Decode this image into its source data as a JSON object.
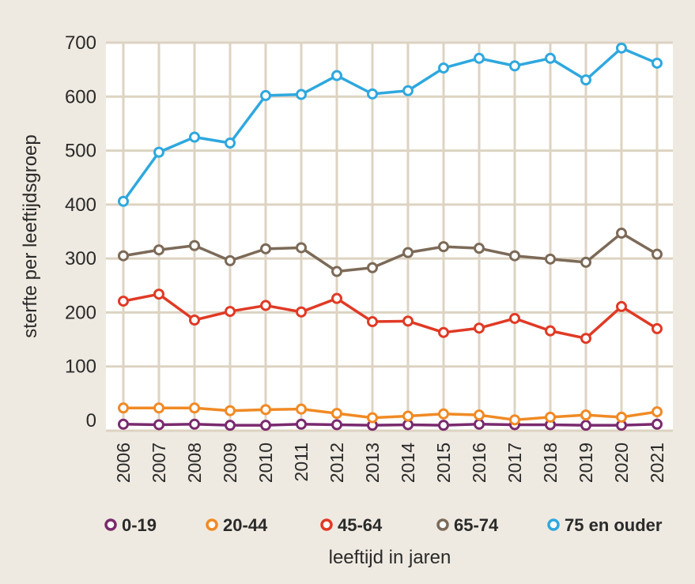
{
  "chart_data": {
    "type": "line",
    "title": "",
    "xlabel": "leeftijd in jaren",
    "ylabel": "sterfte per leeftijdsgroep",
    "ylim": [
      0,
      700
    ],
    "yticks": [
      0,
      100,
      200,
      300,
      400,
      500,
      600,
      700
    ],
    "grid": true,
    "legend_position": "bottom",
    "x": [
      "2006",
      "2007",
      "2008",
      "2009",
      "2010",
      "2011",
      "2012",
      "2013",
      "2014",
      "2015",
      "2016",
      "2017",
      "2018",
      "2019",
      "2020",
      "2021"
    ],
    "series": [
      {
        "name": "0-19",
        "color": "#7a2a6e",
        "values": [
          -7,
          -8,
          -7,
          -9,
          -9,
          -7,
          -8,
          -9,
          -8,
          -9,
          -7,
          -8,
          -8,
          -9,
          -9,
          -7
        ]
      },
      {
        "name": "20-44",
        "color": "#f08a24",
        "values": [
          23,
          23,
          23,
          18,
          20,
          21,
          13,
          5,
          8,
          12,
          10,
          1,
          6,
          10,
          6,
          16
        ]
      },
      {
        "name": "45-64",
        "color": "#e03a25",
        "values": [
          221,
          234,
          186,
          202,
          213,
          201,
          226,
          183,
          184,
          163,
          171,
          189,
          166,
          152,
          211,
          170
        ]
      },
      {
        "name": "65-74",
        "color": "#7c6a58",
        "values": [
          305,
          316,
          324,
          296,
          318,
          320,
          276,
          283,
          311,
          322,
          319,
          305,
          299,
          293,
          347,
          308
        ]
      },
      {
        "name": "75 en ouder",
        "color": "#2fa8de",
        "values": [
          406,
          497,
          525,
          514,
          602,
          604,
          639,
          605,
          611,
          653,
          671,
          657,
          671,
          631,
          690,
          662
        ]
      }
    ]
  }
}
